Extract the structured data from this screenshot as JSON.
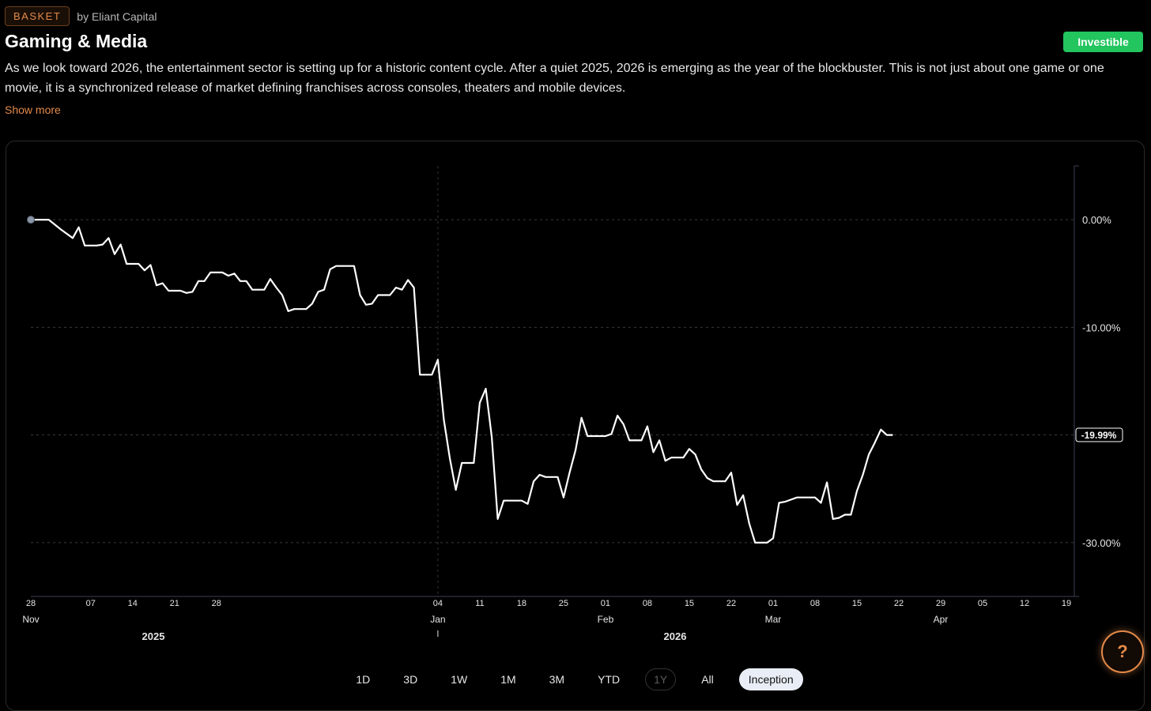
{
  "header": {
    "badge": "BASKET",
    "by": "by Eliant Capital",
    "title": "Gaming & Media",
    "status_button": "Investible",
    "description": "As we look toward 2026, the entertainment sector is setting up for a historic content cycle. After a quiet 2025, 2026 is emerging as the year of the blockbuster. This is not just about one game or one movie, it is a synchronized release of market defining franchises across consoles, theaters and mobile devices.",
    "show_more": "Show more"
  },
  "colors": {
    "accent": "#e48a4a",
    "positive": "#22c55e",
    "line": "#ffffff"
  },
  "chart_data": {
    "type": "line",
    "ylim": [
      -35,
      5
    ],
    "y_ticks": [
      0,
      -10,
      -30
    ],
    "y_tick_labels": [
      "0.00%",
      "-10.00%",
      "-30.00%"
    ],
    "current_value": -19.99,
    "current_label": "-19.99%",
    "x_ticks": [
      {
        "day": "28",
        "month": "Nov",
        "year": "2025",
        "x": "2025-10-28"
      },
      {
        "day": "07",
        "x": "2025-11-07"
      },
      {
        "day": "14",
        "x": "2025-11-14"
      },
      {
        "day": "21",
        "x": "2025-11-21"
      },
      {
        "day": "28",
        "x": "2025-11-28"
      },
      {
        "day": "04",
        "month": "Jan",
        "x": "2026-01-04"
      },
      {
        "day": "11",
        "x": "2026-01-11"
      },
      {
        "day": "18",
        "x": "2026-01-18"
      },
      {
        "day": "25",
        "x": "2026-01-25"
      },
      {
        "day": "01",
        "month": "Feb",
        "x": "2026-02-01"
      },
      {
        "day": "08",
        "x": "2026-02-08"
      },
      {
        "day": "15",
        "x": "2026-02-15"
      },
      {
        "day": "22",
        "x": "2026-02-22"
      },
      {
        "day": "01",
        "month": "Mar",
        "year": "2026",
        "x": "2026-03-01"
      },
      {
        "day": "08",
        "x": "2026-03-08"
      },
      {
        "day": "15",
        "x": "2026-03-15"
      },
      {
        "day": "22",
        "x": "2026-03-22"
      },
      {
        "day": "29",
        "month": "Apr",
        "x": "2026-03-29"
      },
      {
        "day": "05",
        "x": "2026-04-05"
      },
      {
        "day": "12",
        "x": "2026-04-12"
      },
      {
        "day": "19",
        "x": "2026-04-19"
      }
    ],
    "series": [
      {
        "values": [
          {
            "x": "2025-10-28",
            "y": 0.0
          },
          {
            "x": "2025-10-29",
            "y": 0.0
          },
          {
            "x": "2025-10-30",
            "y": 0.0
          },
          {
            "x": "2025-10-31",
            "y": 0.0
          },
          {
            "x": "2025-11-02",
            "y": -0.9
          },
          {
            "x": "2025-11-04",
            "y": -1.7
          },
          {
            "x": "2025-11-05",
            "y": -0.7
          },
          {
            "x": "2025-11-06",
            "y": -2.4
          },
          {
            "x": "2025-11-07",
            "y": -2.4
          },
          {
            "x": "2025-11-08",
            "y": -2.4
          },
          {
            "x": "2025-11-09",
            "y": -2.3
          },
          {
            "x": "2025-11-10",
            "y": -1.7
          },
          {
            "x": "2025-11-11",
            "y": -3.2
          },
          {
            "x": "2025-11-12",
            "y": -2.3
          },
          {
            "x": "2025-11-13",
            "y": -4.1
          },
          {
            "x": "2025-11-14",
            "y": -4.1
          },
          {
            "x": "2025-11-15",
            "y": -4.1
          },
          {
            "x": "2025-11-16",
            "y": -4.7
          },
          {
            "x": "2025-11-17",
            "y": -4.2
          },
          {
            "x": "2025-11-18",
            "y": -6.1
          },
          {
            "x": "2025-11-19",
            "y": -5.9
          },
          {
            "x": "2025-11-20",
            "y": -6.6
          },
          {
            "x": "2025-11-21",
            "y": -6.6
          },
          {
            "x": "2025-11-22",
            "y": -6.6
          },
          {
            "x": "2025-11-23",
            "y": -6.8
          },
          {
            "x": "2025-11-24",
            "y": -6.7
          },
          {
            "x": "2025-11-25",
            "y": -5.7
          },
          {
            "x": "2025-11-26",
            "y": -5.7
          },
          {
            "x": "2025-11-27",
            "y": -4.9
          },
          {
            "x": "2025-11-28",
            "y": -4.9
          },
          {
            "x": "2025-11-29",
            "y": -4.9
          },
          {
            "x": "2025-11-30",
            "y": -5.2
          },
          {
            "x": "2025-12-01",
            "y": -5.0
          },
          {
            "x": "2025-12-02",
            "y": -5.7
          },
          {
            "x": "2025-12-03",
            "y": -5.7
          },
          {
            "x": "2025-12-04",
            "y": -6.5
          },
          {
            "x": "2025-12-05",
            "y": -6.5
          },
          {
            "x": "2025-12-06",
            "y": -6.5
          },
          {
            "x": "2025-12-07",
            "y": -5.5
          },
          {
            "x": "2025-12-08",
            "y": -6.3
          },
          {
            "x": "2025-12-09",
            "y": -7.0
          },
          {
            "x": "2025-12-10",
            "y": -8.5
          },
          {
            "x": "2025-12-11",
            "y": -8.3
          },
          {
            "x": "2025-12-12",
            "y": -8.3
          },
          {
            "x": "2025-12-13",
            "y": -8.3
          },
          {
            "x": "2025-12-14",
            "y": -7.8
          },
          {
            "x": "2025-12-15",
            "y": -6.7
          },
          {
            "x": "2025-12-16",
            "y": -6.5
          },
          {
            "x": "2025-12-17",
            "y": -4.6
          },
          {
            "x": "2025-12-18",
            "y": -4.3
          },
          {
            "x": "2025-12-19",
            "y": -4.3
          },
          {
            "x": "2025-12-20",
            "y": -4.3
          },
          {
            "x": "2025-12-21",
            "y": -4.3
          },
          {
            "x": "2025-12-22",
            "y": -7.0
          },
          {
            "x": "2025-12-23",
            "y": -7.9
          },
          {
            "x": "2025-12-24",
            "y": -7.8
          },
          {
            "x": "2025-12-25",
            "y": -7.0
          },
          {
            "x": "2025-12-26",
            "y": -7.0
          },
          {
            "x": "2025-12-27",
            "y": -7.0
          },
          {
            "x": "2025-12-28",
            "y": -6.3
          },
          {
            "x": "2025-12-29",
            "y": -6.5
          },
          {
            "x": "2025-12-30",
            "y": -5.6
          },
          {
            "x": "2025-12-31",
            "y": -6.3
          },
          {
            "x": "2026-01-01",
            "y": -14.4
          },
          {
            "x": "2026-01-02",
            "y": -14.4
          },
          {
            "x": "2026-01-03",
            "y": -14.4
          },
          {
            "x": "2026-01-04",
            "y": -13.0
          },
          {
            "x": "2026-01-05",
            "y": -18.6
          },
          {
            "x": "2026-01-06",
            "y": -22.2
          },
          {
            "x": "2026-01-07",
            "y": -25.1
          },
          {
            "x": "2026-01-08",
            "y": -22.6
          },
          {
            "x": "2026-01-09",
            "y": -22.6
          },
          {
            "x": "2026-01-10",
            "y": -22.6
          },
          {
            "x": "2026-01-11",
            "y": -17.0
          },
          {
            "x": "2026-01-12",
            "y": -15.7
          },
          {
            "x": "2026-01-13",
            "y": -20.2
          },
          {
            "x": "2026-01-14",
            "y": -27.8
          },
          {
            "x": "2026-01-15",
            "y": -26.1
          },
          {
            "x": "2026-01-16",
            "y": -26.1
          },
          {
            "x": "2026-01-17",
            "y": -26.1
          },
          {
            "x": "2026-01-18",
            "y": -26.1
          },
          {
            "x": "2026-01-19",
            "y": -26.4
          },
          {
            "x": "2026-01-20",
            "y": -24.3
          },
          {
            "x": "2026-01-21",
            "y": -23.7
          },
          {
            "x": "2026-01-22",
            "y": -23.9
          },
          {
            "x": "2026-01-23",
            "y": -23.9
          },
          {
            "x": "2026-01-24",
            "y": -23.9
          },
          {
            "x": "2026-01-25",
            "y": -25.8
          },
          {
            "x": "2026-01-26",
            "y": -23.5
          },
          {
            "x": "2026-01-27",
            "y": -21.4
          },
          {
            "x": "2026-01-28",
            "y": -18.4
          },
          {
            "x": "2026-01-29",
            "y": -20.1
          },
          {
            "x": "2026-01-30",
            "y": -20.1
          },
          {
            "x": "2026-01-31",
            "y": -20.1
          },
          {
            "x": "2026-02-01",
            "y": -20.1
          },
          {
            "x": "2026-02-02",
            "y": -19.9
          },
          {
            "x": "2026-02-03",
            "y": -18.2
          },
          {
            "x": "2026-02-04",
            "y": -19.0
          },
          {
            "x": "2026-02-05",
            "y": -20.5
          },
          {
            "x": "2026-02-06",
            "y": -20.5
          },
          {
            "x": "2026-02-07",
            "y": -20.5
          },
          {
            "x": "2026-02-08",
            "y": -19.2
          },
          {
            "x": "2026-02-09",
            "y": -21.6
          },
          {
            "x": "2026-02-10",
            "y": -20.5
          },
          {
            "x": "2026-02-11",
            "y": -22.4
          },
          {
            "x": "2026-02-12",
            "y": -22.1
          },
          {
            "x": "2026-02-13",
            "y": -22.1
          },
          {
            "x": "2026-02-14",
            "y": -22.1
          },
          {
            "x": "2026-02-15",
            "y": -21.3
          },
          {
            "x": "2026-02-16",
            "y": -21.8
          },
          {
            "x": "2026-02-17",
            "y": -23.2
          },
          {
            "x": "2026-02-18",
            "y": -24.0
          },
          {
            "x": "2026-02-19",
            "y": -24.3
          },
          {
            "x": "2026-02-20",
            "y": -24.3
          },
          {
            "x": "2026-02-21",
            "y": -24.3
          },
          {
            "x": "2026-02-22",
            "y": -23.5
          },
          {
            "x": "2026-02-23",
            "y": -26.5
          },
          {
            "x": "2026-02-24",
            "y": -25.6
          },
          {
            "x": "2026-02-25",
            "y": -28.2
          },
          {
            "x": "2026-02-26",
            "y": -30.0
          },
          {
            "x": "2026-02-27",
            "y": -30.0
          },
          {
            "x": "2026-02-28",
            "y": -30.0
          },
          {
            "x": "2026-03-01",
            "y": -29.6
          },
          {
            "x": "2026-03-02",
            "y": -26.3
          },
          {
            "x": "2026-03-03",
            "y": -26.2
          },
          {
            "x": "2026-03-04",
            "y": -26.0
          },
          {
            "x": "2026-03-05",
            "y": -25.8
          },
          {
            "x": "2026-03-06",
            "y": -25.8
          },
          {
            "x": "2026-03-07",
            "y": -25.8
          },
          {
            "x": "2026-03-08",
            "y": -25.8
          },
          {
            "x": "2026-03-09",
            "y": -26.3
          },
          {
            "x": "2026-03-10",
            "y": -24.4
          },
          {
            "x": "2026-03-11",
            "y": -27.8
          },
          {
            "x": "2026-03-12",
            "y": -27.7
          },
          {
            "x": "2026-03-13",
            "y": -27.4
          },
          {
            "x": "2026-03-14",
            "y": -27.4
          },
          {
            "x": "2026-03-15",
            "y": -25.2
          },
          {
            "x": "2026-03-16",
            "y": -23.7
          },
          {
            "x": "2026-03-17",
            "y": -21.8
          },
          {
            "x": "2026-03-18",
            "y": -20.7
          },
          {
            "x": "2026-03-19",
            "y": -19.5
          },
          {
            "x": "2026-03-20",
            "y": -20.0
          },
          {
            "x": "2026-03-21",
            "y": -20.0
          }
        ]
      }
    ]
  },
  "timeline": {
    "years": [
      "2025",
      "2026"
    ],
    "ranges": [
      "1D",
      "3D",
      "1W",
      "1M",
      "3M",
      "YTD",
      "1Y",
      "All",
      "Inception"
    ],
    "active_range": "Inception",
    "disabled_range": "1Y"
  },
  "help": {
    "label": "?"
  }
}
